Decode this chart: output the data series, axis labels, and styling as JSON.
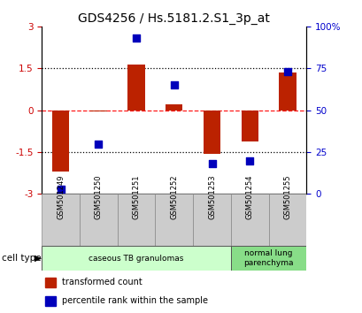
{
  "title": "GDS4256 / Hs.5181.2.S1_3p_at",
  "samples": [
    "GSM501249",
    "GSM501250",
    "GSM501251",
    "GSM501252",
    "GSM501253",
    "GSM501254",
    "GSM501255"
  ],
  "transformed_counts": [
    -2.2,
    -0.05,
    1.65,
    0.2,
    -1.55,
    -1.1,
    1.35
  ],
  "percentile_ranks": [
    3,
    30,
    93,
    65,
    18,
    20,
    73
  ],
  "ylim_left": [
    -3,
    3
  ],
  "ylim_right": [
    0,
    100
  ],
  "yticks_left": [
    -3,
    -1.5,
    0,
    1.5,
    3
  ],
  "yticks_right": [
    0,
    25,
    50,
    75,
    100
  ],
  "ytick_labels_left": [
    "-3",
    "-1.5",
    "0",
    "1.5",
    "3"
  ],
  "ytick_labels_right": [
    "0",
    "25",
    "50",
    "75",
    "100%"
  ],
  "hlines_dotted": [
    -1.5,
    1.5
  ],
  "hline_dashed": 0,
  "bar_color": "#bb2200",
  "dot_color": "#0000bb",
  "cell_groups": [
    {
      "label": "caseous TB granulomas",
      "samples": [
        0,
        1,
        2,
        3,
        4
      ],
      "color": "#ccffcc"
    },
    {
      "label": "normal lung\nparenchyma",
      "samples": [
        5,
        6
      ],
      "color": "#88dd88"
    }
  ],
  "legend_items": [
    {
      "color": "#bb2200",
      "label": "transformed count"
    },
    {
      "color": "#0000bb",
      "label": "percentile rank within the sample"
    }
  ],
  "cell_type_label": "cell type",
  "background_color": "#ffffff",
  "plot_bg_color": "#ffffff",
  "tick_label_color_left": "#cc0000",
  "tick_label_color_right": "#0000cc",
  "title_fontsize": 10,
  "axis_fontsize": 7.5,
  "bar_width": 0.45,
  "dot_size": 35,
  "sample_box_color": "#cccccc"
}
